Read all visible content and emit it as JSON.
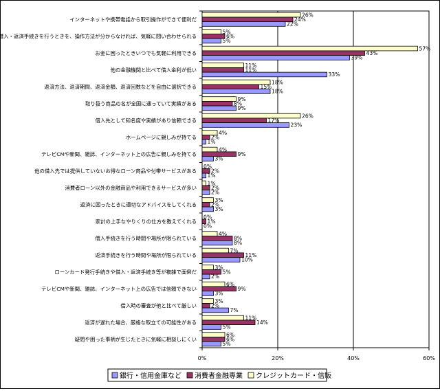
{
  "chart_data": {
    "type": "bar",
    "orientation": "horizontal",
    "title": "",
    "xlabel": "",
    "ylabel": "",
    "xlim": [
      0,
      60
    ],
    "x_ticks": [
      "0%",
      "20%",
      "40%",
      "60%"
    ],
    "grid": true,
    "legend_position": "bottom",
    "categories": [
      "インターネットや携帯電話から取引操作ができて便利だ",
      "借入・返済手続きを行うときを、操作方法が分からなければ、気軽に問い合わせられる",
      "お金に困ったときいつでも気軽に利用できる",
      "他の金融機関と比べて借入金利が低い",
      "返済方法、返済期間、返済金額、返済回数などを自由に選択できる",
      "取り扱う商品の名が全国に通っていて実績がある",
      "借入先として知名度や実績があり信頼できる",
      "ホームページに親しみが持てる",
      "テレビCMや新聞、雑誌、インターネット上の広告に親しみを持てる",
      "他の借入先では提供していないお得なローン商品や付帯サービスがある",
      "消費者ローン以外の金融商品や利用できるサービスが多い",
      "返済に困ったときに適切なアドバイスをしてくれる",
      "家計の上手なやりくりの仕方を教えてくれる",
      "借入手続きを行う時間や場所が限られている",
      "返済手続きを行う時間や場所が限られている",
      "ローンカード発行手続きや借入・返済手続き等が複雑で面倒だ",
      "テレビCMや新聞、雑誌、インターネット上の広告では信頼できない",
      "借入時の審査が他と比べて厳しい",
      "返済が遅れた場合、厳格な取立ての可能性がある",
      "疑問や困った事柄が生じたときに気軽に相談しにくい"
    ],
    "series": [
      {
        "name": "銀行・信用金庫など",
        "color": "#9999ff",
        "values": [
          22,
          5,
          39,
          33,
          18,
          9,
          23,
          1,
          3,
          1,
          2,
          3,
          0,
          8,
          10,
          2,
          3,
          7,
          5,
          5
        ]
      },
      {
        "name": "消費者金融専業",
        "color": "#993366",
        "values": [
          24,
          6,
          43,
          11,
          15,
          8,
          17,
          2,
          9,
          2,
          2,
          2,
          1,
          8,
          11,
          5,
          9,
          2,
          14,
          6
        ]
      },
      {
        "name": "クレジットカード・信販",
        "color": "#ffffcc",
        "values": [
          26,
          5,
          57,
          11,
          18,
          9,
          26,
          4,
          4,
          0,
          1,
          3,
          0,
          4,
          7,
          3,
          6,
          3,
          11,
          6
        ]
      }
    ]
  }
}
